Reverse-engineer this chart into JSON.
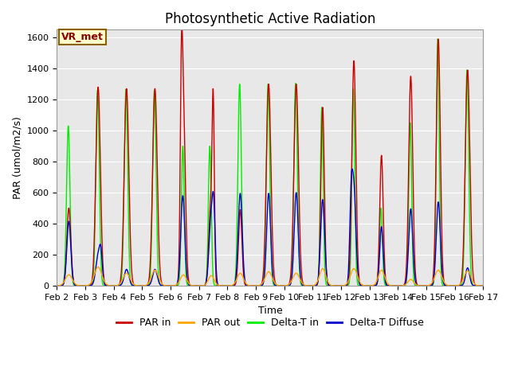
{
  "title": "Photosynthetic Active Radiation",
  "ylabel": "PAR (umol/m2/s)",
  "xlabel": "Time",
  "annotation": "VR_met",
  "ylim": [
    0,
    1650
  ],
  "yticks": [
    0,
    200,
    400,
    600,
    800,
    1000,
    1200,
    1400,
    1600
  ],
  "xtick_labels": [
    "Feb 2",
    "Feb 3",
    "Feb 4",
    "Feb 5",
    "Feb 6",
    "Feb 7",
    "Feb 8",
    "Feb 9",
    "Feb 10",
    "Feb 11",
    "Feb 12",
    "Feb 13",
    "Feb 14",
    "Feb 15",
    "Feb 16",
    "Feb 17"
  ],
  "colors": {
    "PAR_in": "#cc0000",
    "PAR_out": "#ffa500",
    "Delta_T_in": "#00ee00",
    "Delta_T_Diffuse": "#0000cc"
  },
  "legend_labels": [
    "PAR in",
    "PAR out",
    "Delta-T in",
    "Delta-T Diffuse"
  ],
  "background_color": "#e8e8e8",
  "figure_background": "#ffffff",
  "title_fontsize": 12,
  "axis_fontsize": 9,
  "tick_fontsize": 8,
  "annotation_fontsize": 9,
  "linewidth": 1.0
}
